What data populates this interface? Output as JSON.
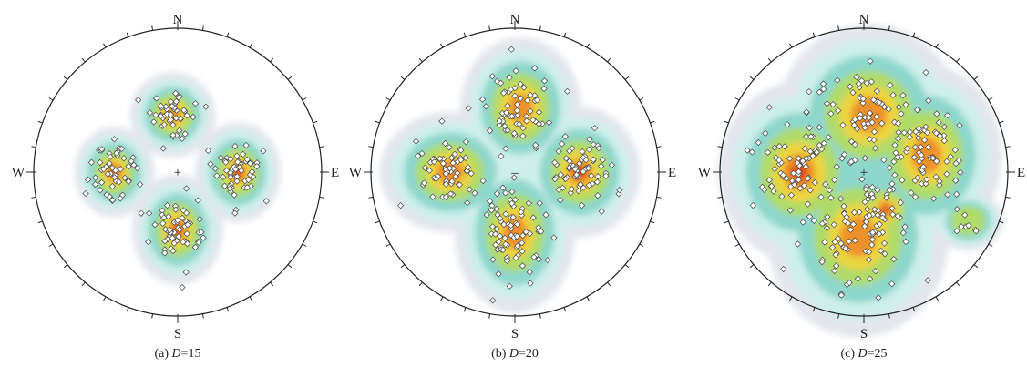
{
  "panels": [
    {
      "id": "a",
      "caption_prefix": "(a) ",
      "caption_var": "D",
      "caption_suffix": "=15",
      "directions": {
        "n": "N",
        "s": "S",
        "e": "E",
        "w": "W"
      },
      "center_marker": "+",
      "clusters": [
        {
          "trend": 90,
          "dist": 0.42,
          "sx": 0.085,
          "sy": 0.1,
          "count": 55,
          "heat": 1.0
        },
        {
          "trend": 270,
          "dist": 0.44,
          "sx": 0.08,
          "sy": 0.09,
          "count": 50,
          "heat": 1.0
        },
        {
          "trend": 355,
          "dist": 0.4,
          "sx": 0.085,
          "sy": 0.085,
          "count": 50,
          "heat": 0.8
        },
        {
          "trend": 180,
          "dist": 0.4,
          "sx": 0.09,
          "sy": 0.11,
          "count": 60,
          "heat": 1.0
        }
      ]
    },
    {
      "id": "b",
      "caption_prefix": "(b) ",
      "caption_var": "D",
      "caption_suffix": "=20",
      "directions": {
        "n": "N",
        "s": "S",
        "e": "E",
        "w": "W"
      },
      "center_marker": "–",
      "clusters": [
        {
          "trend": 90,
          "dist": 0.45,
          "sx": 0.12,
          "sy": 0.13,
          "count": 70,
          "heat": 1.0
        },
        {
          "trend": 270,
          "dist": 0.45,
          "sx": 0.14,
          "sy": 0.12,
          "count": 65,
          "heat": 0.8
        },
        {
          "trend": 5,
          "dist": 0.45,
          "sx": 0.12,
          "sy": 0.14,
          "count": 65,
          "heat": 0.8
        },
        {
          "trend": 180,
          "dist": 0.42,
          "sx": 0.12,
          "sy": 0.16,
          "count": 75,
          "heat": 0.9
        }
      ]
    },
    {
      "id": "c",
      "caption_prefix": "(c) ",
      "caption_var": "D",
      "caption_suffix": "=25",
      "directions": {
        "n": "N",
        "s": "S",
        "e": "E",
        "w": "W"
      },
      "center_marker": "+",
      "clusters": [
        {
          "trend": 270,
          "dist": 0.45,
          "sx": 0.16,
          "sy": 0.18,
          "count": 80,
          "heat": 1.0
        },
        {
          "trend": 5,
          "dist": 0.4,
          "sx": 0.18,
          "sy": 0.18,
          "count": 75,
          "heat": 0.9
        },
        {
          "trend": 75,
          "dist": 0.45,
          "sx": 0.15,
          "sy": 0.18,
          "count": 70,
          "heat": 0.8
        },
        {
          "trend": 185,
          "dist": 0.45,
          "sx": 0.18,
          "sy": 0.2,
          "count": 80,
          "heat": 0.8
        },
        {
          "trend": 150,
          "dist": 0.3,
          "sx": 0.08,
          "sy": 0.08,
          "count": 20,
          "heat": 1.0
        },
        {
          "trend": 115,
          "dist": 0.8,
          "sx": 0.07,
          "sy": 0.06,
          "count": 8,
          "heat": 0.3
        }
      ]
    }
  ],
  "colors": {
    "outer": "#e3e6eb",
    "teal_light": "#cdeeea",
    "teal": "#8dd7cc",
    "green": "#b0db69",
    "yellow": "#efd43f",
    "orange": "#f08a2a",
    "red": "#dc3c1c",
    "circle": "#222222",
    "point_fill": "#ffffff",
    "point_stroke": "#444444"
  }
}
